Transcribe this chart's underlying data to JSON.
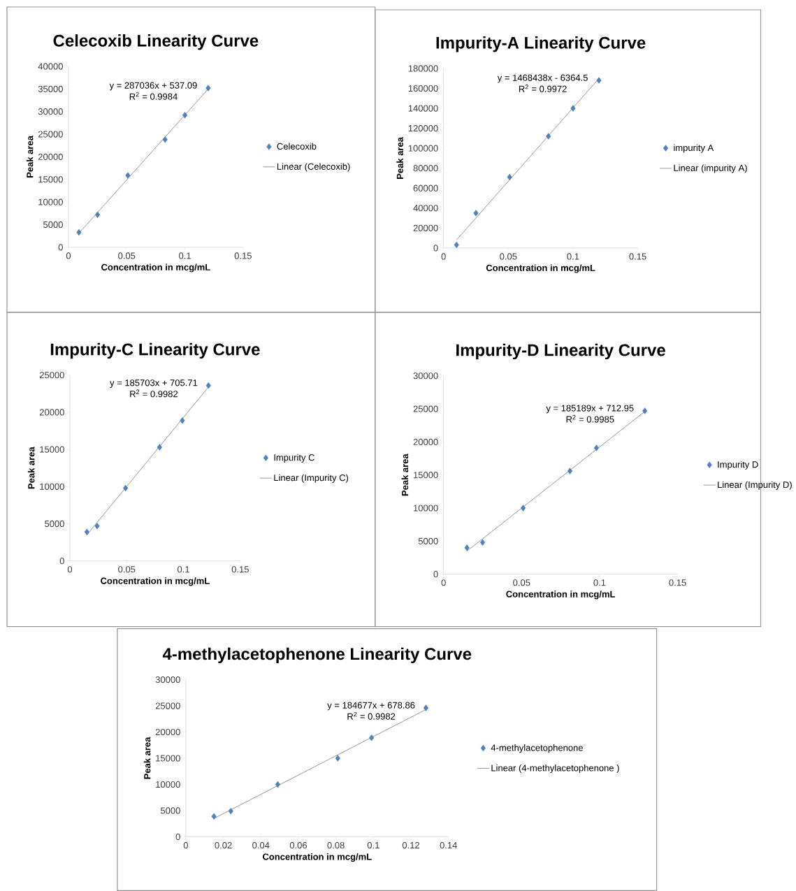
{
  "chart_data": [
    {
      "type": "scatter",
      "title": "Celecoxib Linearity Curve",
      "xlabel": "Concentration in mcg/mL",
      "ylabel": "Peak area",
      "xlim": [
        0,
        0.15
      ],
      "xticks": [
        0,
        0.05,
        0.1,
        0.15
      ],
      "ylim": [
        0,
        40000
      ],
      "yticks": [
        0,
        5000,
        10000,
        15000,
        20000,
        25000,
        30000,
        35000,
        40000
      ],
      "legend": "right",
      "annotations": [
        "y = 287036x + 537.09",
        "R$^{2}$ = 0.9984"
      ],
      "series": [
        {
          "name": "Celecoxib",
          "type": "scatter",
          "marker": "diamond",
          "color": "#4f81bd",
          "x": [
            0.009,
            0.025,
            0.051,
            0.083,
            0.1,
            0.12
          ],
          "values": [
            3300,
            7200,
            15900,
            23800,
            29200,
            35200
          ]
        },
        {
          "name": "Linear (Celecoxib)",
          "type": "line",
          "marker": "none",
          "color": "#7f7f7f",
          "x": [
            0.009,
            0.12
          ],
          "values": [
            3100,
            35000
          ]
        }
      ]
    },
    {
      "type": "scatter",
      "title": "Impurity-A Linearity Curve",
      "xlabel": "Concentration in mcg/mL",
      "ylabel": "Peak area",
      "xlim": [
        0,
        0.15
      ],
      "xticks": [
        0,
        0.05,
        0.1,
        0.15
      ],
      "ylim": [
        0,
        180000
      ],
      "yticks": [
        0,
        20000,
        40000,
        60000,
        80000,
        100000,
        120000,
        140000,
        160000,
        180000
      ],
      "legend": "right",
      "annotations": [
        "y = 1468438x - 6364.5",
        "R$^{2}$ = 0.9972"
      ],
      "series": [
        {
          "name": "impurity A",
          "type": "scatter",
          "marker": "diamond",
          "color": "#4f81bd",
          "x": [
            0.01,
            0.025,
            0.051,
            0.081,
            0.1,
            0.12
          ],
          "values": [
            3000,
            35000,
            71000,
            112000,
            140000,
            168000
          ]
        },
        {
          "name": "Linear (impurity A)",
          "type": "line",
          "marker": "none",
          "color": "#7f7f7f",
          "x": [
            0.01,
            0.12
          ],
          "values": [
            8000,
            170000
          ]
        }
      ]
    },
    {
      "type": "scatter",
      "title": "Impurity-C Linearity Curve",
      "xlabel": "Concentration in mcg/mL",
      "ylabel": "Peak area",
      "xlim": [
        0,
        0.15
      ],
      "xticks": [
        0,
        0.05,
        0.1,
        0.15
      ],
      "ylim": [
        0,
        25000
      ],
      "yticks": [
        0,
        5000,
        10000,
        15000,
        20000,
        25000
      ],
      "legend": "right",
      "annotations": [
        "y = 185703x + 705.71",
        "R$^{2}$ = 0.9982"
      ],
      "series": [
        {
          "name": "Impurity C",
          "type": "scatter",
          "marker": "diamond",
          "color": "#4f81bd",
          "x": [
            0.015,
            0.024,
            0.049,
            0.079,
            0.099,
            0.122
          ],
          "values": [
            3900,
            4700,
            9800,
            15300,
            18900,
            23600
          ]
        },
        {
          "name": "Linear (Impurity C)",
          "type": "line",
          "marker": "none",
          "color": "#7f7f7f",
          "x": [
            0.015,
            0.122
          ],
          "values": [
            3500,
            23400
          ]
        }
      ]
    },
    {
      "type": "scatter",
      "title": "Impurity-D Linearity Curve",
      "xlabel": "Concentration in mcg/mL",
      "ylabel": "Peak area",
      "xlim": [
        0,
        0.15
      ],
      "xticks": [
        0,
        0.05,
        0.1,
        0.15
      ],
      "ylim": [
        0,
        30000
      ],
      "yticks": [
        0,
        5000,
        10000,
        15000,
        20000,
        25000,
        30000
      ],
      "legend": "right",
      "annotations": [
        "y = 185189x + 712.95",
        "R$^{2}$ = 0.9985"
      ],
      "series": [
        {
          "name": "Impurity D",
          "type": "scatter",
          "marker": "diamond",
          "color": "#4f81bd",
          "x": [
            0.015,
            0.025,
            0.051,
            0.081,
            0.098,
            0.129
          ],
          "values": [
            4000,
            4800,
            10000,
            15600,
            19100,
            24700
          ]
        },
        {
          "name": "Linear (Impurity D)",
          "type": "line",
          "marker": "none",
          "color": "#7f7f7f",
          "x": [
            0.015,
            0.129
          ],
          "values": [
            3500,
            24600
          ]
        }
      ]
    },
    {
      "type": "scatter",
      "title": "4-methylacetophenone  Linearity Curve",
      "xlabel": "Concentration in mcg/mL",
      "ylabel": "Peak area",
      "xlim": [
        0,
        0.14
      ],
      "xticks": [
        0,
        0.02,
        0.04,
        0.06,
        0.08,
        0.1,
        0.12,
        0.14
      ],
      "ylim": [
        0,
        30000
      ],
      "yticks": [
        0,
        5000,
        10000,
        15000,
        20000,
        25000,
        30000
      ],
      "legend": "right",
      "annotations": [
        "y = 184677x + 678.86",
        "R$^{2}$ = 0.9982"
      ],
      "series": [
        {
          "name": "4-methylacetophenone",
          "type": "scatter",
          "marker": "diamond",
          "color": "#4f81bd",
          "x": [
            0.015,
            0.024,
            0.049,
            0.081,
            0.099,
            0.128
          ],
          "values": [
            3900,
            4900,
            10000,
            15000,
            18900,
            24600
          ]
        },
        {
          "name": "Linear (4-methylacetophenone )",
          "type": "line",
          "marker": "none",
          "color": "#7f7f7f",
          "x": [
            0.015,
            0.128
          ],
          "values": [
            3500,
            24300
          ]
        }
      ]
    }
  ]
}
